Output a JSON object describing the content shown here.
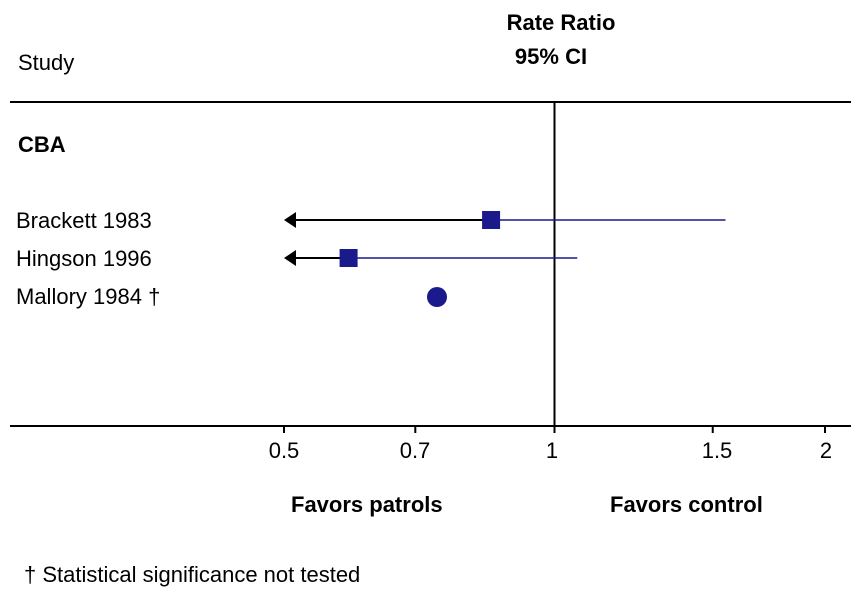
{
  "header": {
    "study_label": "Study",
    "effect_title": "Rate Ratio",
    "effect_subtitle": "95% CI"
  },
  "chart_data": {
    "type": "forest",
    "scale": "log",
    "xlim": [
      0.5,
      2
    ],
    "reference_line": 1,
    "tick_labels": [
      "0.5",
      "0.7",
      "1",
      "1.5",
      "2"
    ],
    "tick_values": [
      0.5,
      0.7,
      1,
      1.5,
      2
    ],
    "groups": [
      {
        "label": "CBA",
        "studies": [
          {
            "label": "Brackett 1983",
            "estimate": 0.85,
            "ci_low": 0.3,
            "ci_high": 1.55,
            "marker": "square"
          },
          {
            "label": "Hingson 1996",
            "estimate": 0.59,
            "ci_low": 0.3,
            "ci_high": 1.06,
            "marker": "square"
          },
          {
            "label": "Mallory 1984 †",
            "estimate": 0.74,
            "ci_low": null,
            "ci_high": null,
            "marker": "circle"
          }
        ]
      }
    ],
    "favors_left": "Favors patrols",
    "favors_right": "Favors control",
    "colors": {
      "marker": "#1a1a8c",
      "line": "#000000",
      "axis": "#000000"
    }
  },
  "footnote": "† Statistical significance not tested"
}
